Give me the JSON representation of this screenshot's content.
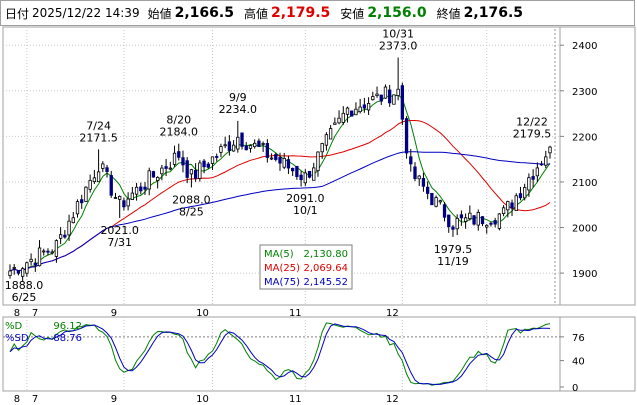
{
  "header": {
    "date_label": "日付",
    "datetime": "2025/12/22 14:39",
    "open_label": "始値",
    "open_value": "2,166.5",
    "high_label": "高値",
    "high_value": "2,179.5",
    "low_label": "安値",
    "low_value": "2,156.0",
    "close_label": "終値",
    "close_value": "2,176.5"
  },
  "chart_data": [
    {
      "type": "candlestick",
      "x_ticks": [
        "7",
        "8",
        "9",
        "10",
        "11",
        "12"
      ],
      "y_ticks": [
        1900,
        2000,
        2100,
        2200,
        2300,
        2400
      ],
      "ylim": [
        1830,
        2440
      ],
      "start_date": "2025-06-25",
      "end_date": "2025-12-22",
      "annotations": [
        {
          "date": "06/25",
          "value": "1888.0",
          "label": "1888.0",
          "sub": "6/25",
          "kind": "low"
        },
        {
          "date": "07/24",
          "value": "2171.5",
          "label": "7/24",
          "sub": "2171.5",
          "kind": "high"
        },
        {
          "date": "07/31",
          "value": "2021.0",
          "label": "2021.0",
          "sub": "7/31",
          "kind": "low"
        },
        {
          "date": "08/20",
          "value": "2184.0",
          "label": "8/20",
          "sub": "2184.0",
          "kind": "high"
        },
        {
          "date": "08/25",
          "value": "2088.0",
          "label": "2088.0",
          "sub": "8/25",
          "kind": "low"
        },
        {
          "date": "09/09",
          "value": "2234.0",
          "label": "9/9",
          "sub": "2234.0",
          "kind": "high"
        },
        {
          "date": "10/01",
          "value": "2091.0",
          "label": "2091.0",
          "sub": "10/1",
          "kind": "low"
        },
        {
          "date": "10/31",
          "value": "2373.0",
          "label": "10/31",
          "sub": "2373.0",
          "kind": "high"
        },
        {
          "date": "11/19",
          "value": "1979.5",
          "label": "1979.5",
          "sub": "11/19",
          "kind": "low"
        },
        {
          "date": "12/22",
          "value": "2179.5",
          "label": "12/22",
          "sub": "2179.5",
          "kind": "high"
        }
      ],
      "moving_averages": [
        {
          "name": "MA(5)",
          "value": "2,130.80",
          "color": "#008000"
        },
        {
          "name": "MA(25)",
          "value": "2,069.64",
          "color": "#e00000"
        },
        {
          "name": "MA(75)",
          "value": "2,145.52",
          "color": "#0000c0"
        }
      ],
      "key_closes": [
        {
          "date": "06/25",
          "close": 1905
        },
        {
          "date": "07/10",
          "close": 1960
        },
        {
          "date": "07/24",
          "close": 2140
        },
        {
          "date": "07/31",
          "close": 2050
        },
        {
          "date": "08/20",
          "close": 2160
        },
        {
          "date": "08/25",
          "close": 2110
        },
        {
          "date": "09/09",
          "close": 2200
        },
        {
          "date": "10/01",
          "close": 2110
        },
        {
          "date": "10/15",
          "close": 2260
        },
        {
          "date": "10/31",
          "close": 2300
        },
        {
          "date": "11/05",
          "close": 2120
        },
        {
          "date": "11/19",
          "close": 2010
        },
        {
          "date": "12/05",
          "close": 2030
        },
        {
          "date": "12/22",
          "close": 2176.5
        }
      ],
      "colors": {
        "up": "#ffffff",
        "down": "#000080",
        "wick": "#000000"
      }
    },
    {
      "type": "line",
      "name": "stochastic",
      "y_ticks": [
        0,
        40,
        76
      ],
      "ylim": [
        0,
        100
      ],
      "reference_line": 76,
      "series": [
        {
          "name": "%D",
          "value": "96.12",
          "color": "#008000"
        },
        {
          "name": "%SD",
          "value": "88.76",
          "color": "#0000c0"
        }
      ],
      "x_ticks": [
        "7",
        "8",
        "9",
        "10",
        "11",
        "12"
      ]
    }
  ]
}
